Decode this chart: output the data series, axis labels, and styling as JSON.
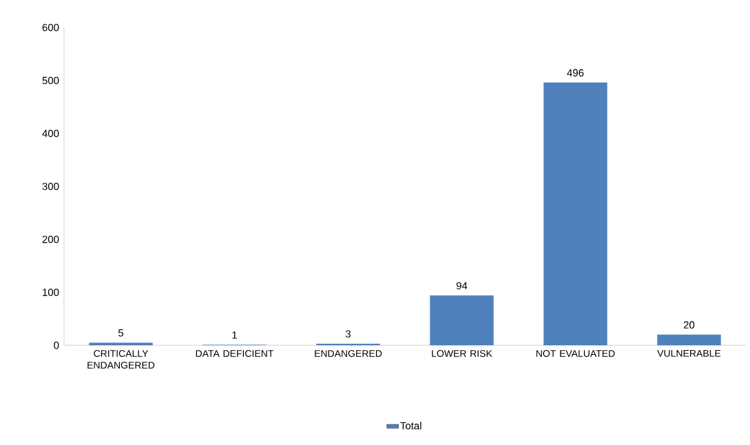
{
  "chart_data": {
    "type": "bar",
    "categories": [
      "CRITICALLY ENDANGERED",
      "DATA DEFICIENT",
      "ENDANGERED",
      "LOWER RISK",
      "NOT EVALUATED",
      "VULNERABLE"
    ],
    "series": [
      {
        "name": "Total",
        "color": "#4f81bd",
        "values": [
          5,
          1,
          3,
          94,
          496,
          20
        ]
      }
    ],
    "ylim": [
      0,
      600
    ],
    "yticks": [
      0,
      100,
      200,
      300,
      400,
      500,
      600
    ],
    "data_labels": true,
    "legend": "bottom",
    "grid": false
  }
}
